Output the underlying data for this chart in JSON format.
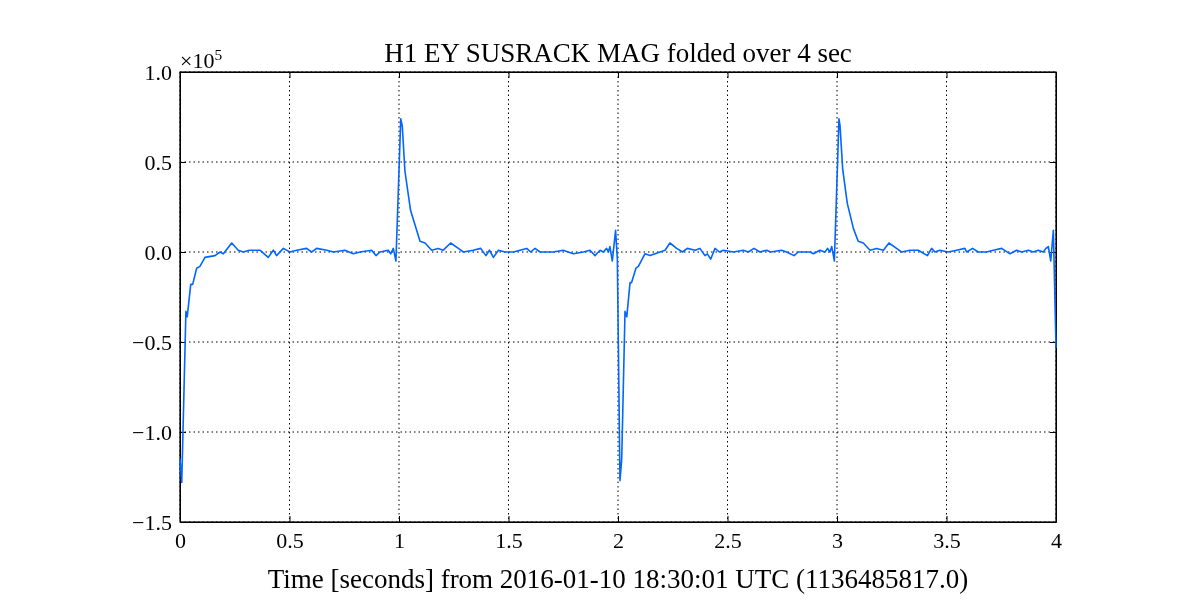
{
  "chart_data": {
    "type": "line",
    "title": "H1 EY SUSRACK MAG folded over 4 sec",
    "xlabel": "Time [seconds] from 2016-01-10 18:30:01 UTC (1136485817.0)",
    "annotations": [
      "×10$^{5}$"
    ],
    "xlim": [
      0,
      4
    ],
    "xticks": [
      0,
      0.5,
      1,
      1.5,
      2,
      2.5,
      3,
      3.5,
      4
    ],
    "ylim": [
      -1.5,
      1.0
    ],
    "yticks": [
      {
        "value": -1.5,
        "label": "−1.5"
      },
      {
        "value": -1.0,
        "label": "−1.0"
      },
      {
        "value": -0.5,
        "label": "−0.5"
      },
      {
        "value": 0,
        "label": "0.0"
      },
      {
        "value": 0.5,
        "label": "0.5"
      },
      {
        "value": 1.0,
        "label": "1.0"
      }
    ],
    "grid": true,
    "marker": "none",
    "line_style": "solid",
    "series": [
      {
        "color": "#0066ff",
        "x": [
          0,
          0.008,
          0.027,
          0.033,
          0.049,
          0.058,
          0.076,
          0.091,
          0.114,
          0.16,
          0.183,
          0.198,
          0.236,
          0.266,
          0.289,
          0.317,
          0.365,
          0.403,
          0.426,
          0.441,
          0.472,
          0.502,
          0.533,
          0.578,
          0.601,
          0.624,
          0.67,
          0.7,
          0.753,
          0.791,
          0.822,
          0.875,
          0.895,
          0.913,
          0.951,
          0.962,
          0.974,
          0.986,
          1.008,
          1.015,
          1.027,
          1.053,
          1.096,
          1.119,
          1.149,
          1.179,
          1.202,
          1.236,
          1.271,
          1.294,
          1.339,
          1.373,
          1.397,
          1.413,
          1.431,
          1.454,
          1.484,
          1.522,
          1.553,
          1.583,
          1.601,
          1.621,
          1.644,
          1.705,
          1.75,
          1.796,
          1.842,
          1.872,
          1.895,
          1.918,
          1.933,
          1.948,
          1.956,
          1.963,
          1.974,
          1.989,
          1.997,
          2.009,
          2.017,
          2.032,
          2.04,
          2.055,
          2.062,
          2.082,
          2.093,
          2.123,
          2.146,
          2.192,
          2.215,
          2.237,
          2.268,
          2.295,
          2.316,
          2.352,
          2.374,
          2.397,
          2.408,
          2.423,
          2.443,
          2.463,
          2.481,
          2.527,
          2.572,
          2.595,
          2.621,
          2.648,
          2.679,
          2.697,
          2.747,
          2.77,
          2.804,
          2.823,
          2.877,
          2.892,
          2.922,
          2.945,
          2.957,
          2.968,
          2.976,
          2.988,
          3.009,
          3.014,
          3.026,
          3.047,
          3.075,
          3.097,
          3.12,
          3.151,
          3.181,
          3.212,
          3.237,
          3.272,
          3.295,
          3.333,
          3.371,
          3.413,
          3.432,
          3.447,
          3.47,
          3.508,
          3.546,
          3.584,
          3.592,
          3.619,
          3.645,
          3.683,
          3.714,
          3.752,
          3.79,
          3.82,
          3.843,
          3.874,
          3.896,
          3.919,
          3.942,
          3.954,
          3.965,
          3.976,
          3.988,
          4.0
        ],
        "values": [
          -1.15,
          -1.28,
          -0.33,
          -0.36,
          -0.18,
          -0.18,
          -0.09,
          -0.08,
          -0.03,
          -0.02,
          0,
          -0.01,
          0.05,
          0.01,
          0,
          0.01,
          0.01,
          -0.03,
          0.01,
          -0.02,
          0.02,
          0,
          0.01,
          0.02,
          0,
          0.02,
          0.01,
          0,
          0.01,
          -0.01,
          0,
          0.01,
          -0.02,
          0,
          0.01,
          -0.01,
          0.02,
          -0.05,
          0.74,
          0.7,
          0.45,
          0.23,
          0.06,
          0.05,
          0.01,
          0.02,
          0.01,
          0.05,
          0.02,
          0,
          0.01,
          0.02,
          -0.02,
          0.01,
          -0.03,
          0.01,
          0,
          0,
          0.01,
          0.02,
          0,
          0.02,
          0,
          0,
          0.01,
          -0.01,
          0,
          0.01,
          -0.02,
          0.01,
          0,
          0.02,
          0,
          0.03,
          -0.05,
          0.12,
          -0.04,
          -1.27,
          -1.15,
          -0.33,
          -0.36,
          -0.17,
          -0.17,
          -0.09,
          -0.08,
          -0.01,
          -0.02,
          0,
          0.01,
          0.05,
          0.02,
          0,
          0.02,
          0.01,
          0.02,
          -0.02,
          -0.01,
          -0.04,
          0.02,
          0,
          0.01,
          0,
          0.01,
          0,
          0.02,
          0,
          0.01,
          0,
          0.01,
          0,
          -0.02,
          0,
          0,
          -0.01,
          0.01,
          0,
          0.02,
          0,
          0.03,
          -0.05,
          0.74,
          0.7,
          0.46,
          0.27,
          0.13,
          0.06,
          0.05,
          0.01,
          0.02,
          0.01,
          0.05,
          0.02,
          0,
          0.01,
          0.01,
          -0.02,
          0.02,
          0,
          0.01,
          0,
          0.01,
          0.02,
          0,
          0.02,
          0,
          0,
          0.01,
          0.02,
          -0.01,
          0.01,
          0,
          0.01,
          0,
          0.01,
          0,
          0.02,
          0.03,
          -0.05,
          0.12,
          -0.53
        ]
      }
    ]
  }
}
